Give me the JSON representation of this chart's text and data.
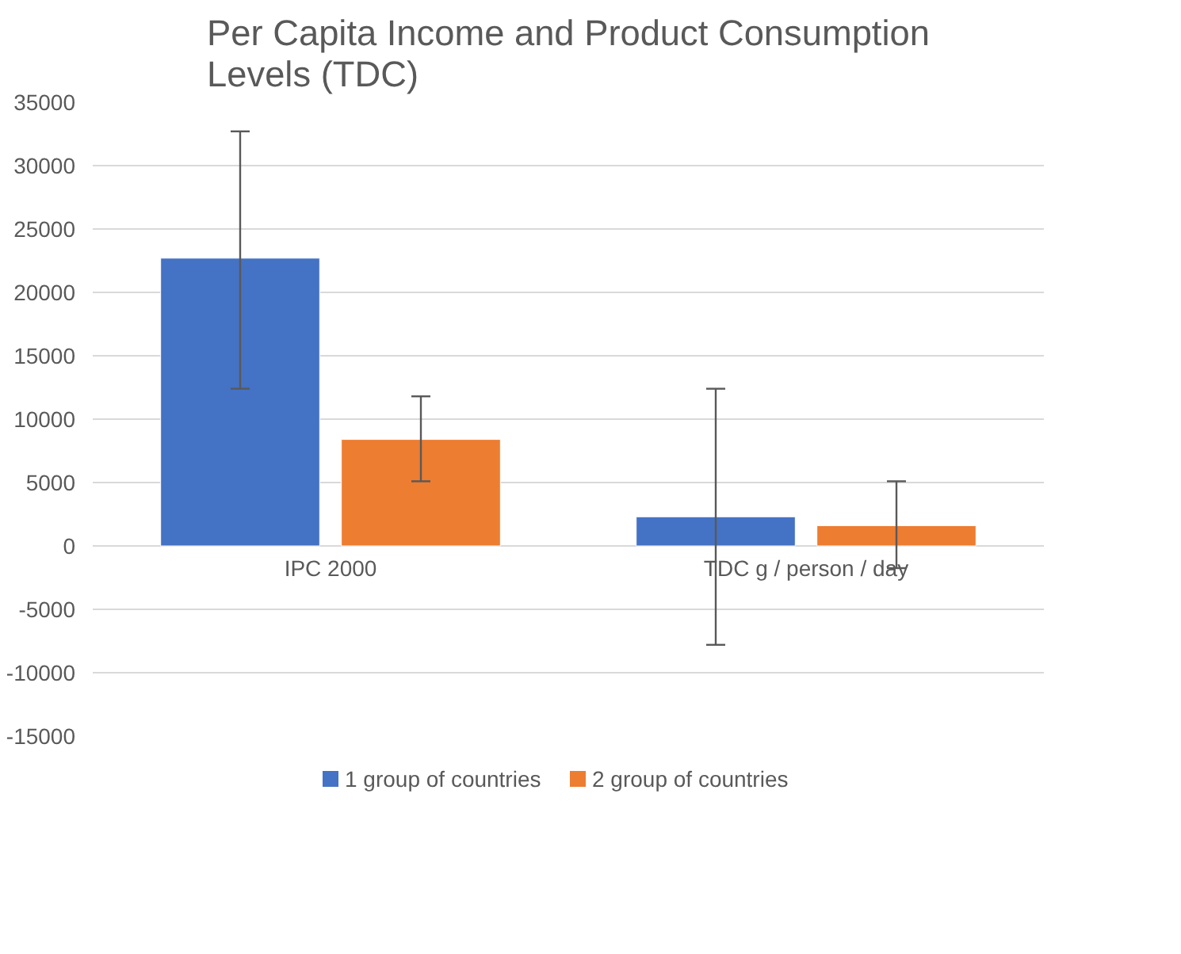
{
  "chart_data": {
    "type": "bar",
    "title": "Per Capita Income and Product Consumption Levels (TDC)",
    "categories": [
      "IPC 2000",
      "TDC g / person / day"
    ],
    "series": [
      {
        "name": "1 group of countries",
        "color": "#4472c4",
        "values": [
          22700,
          2300
        ],
        "errors": [
          [
            12400,
            32700
          ],
          [
            -7800,
            12400
          ]
        ]
      },
      {
        "name": "2 group of countries",
        "color": "#ed7d31",
        "values": [
          8400,
          1600
        ],
        "errors": [
          [
            5100,
            11800
          ],
          [
            -1750,
            5100
          ]
        ]
      }
    ],
    "ylim": [
      -15000,
      35000
    ],
    "yticks": [
      -15000,
      -10000,
      -5000,
      0,
      5000,
      10000,
      15000,
      20000,
      25000,
      30000,
      35000
    ],
    "grid": "y",
    "legend": "bottom"
  }
}
